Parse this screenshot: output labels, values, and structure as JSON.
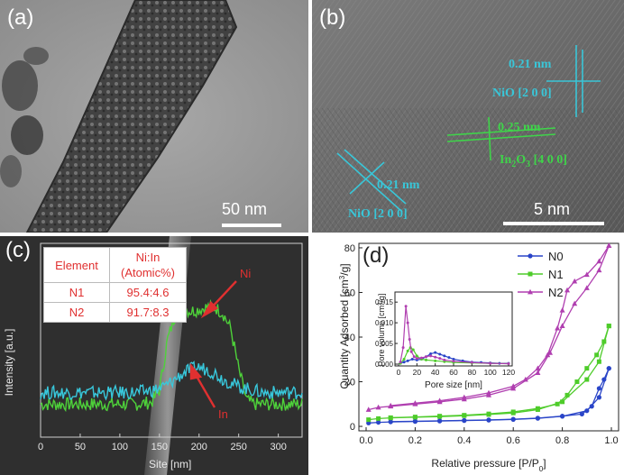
{
  "panel_a": {
    "label": "(a)",
    "scale_bar": "50 nm"
  },
  "panel_b": {
    "label": "(b)",
    "scale_bar": "5 nm",
    "annotations": [
      {
        "spacing": "0.21 nm",
        "plane": "NiO [2 0 0]",
        "color": "#39c6d8"
      },
      {
        "spacing": "0.25 nm",
        "plane_base": "In",
        "plane_sub": "2",
        "plane_mid": "O",
        "plane_sub2": "3",
        "plane_rest": " [4 0 0]",
        "color": "#3fd44a"
      },
      {
        "spacing": "0.21 nm",
        "plane": "NiO [2 0 0]",
        "color": "#39c6d8"
      }
    ]
  },
  "panel_c": {
    "label": "(c)",
    "table": {
      "headers": [
        "Element",
        "Ni:In (Atomic%)"
      ],
      "header_l1": "Ni:In",
      "header_l2": "(Atomic%)",
      "rows": [
        [
          "N1",
          "95.4:4.6"
        ],
        [
          "N2",
          "91.7:8.3"
        ]
      ]
    },
    "arrow_ni": "Ni",
    "arrow_in": "In",
    "chart_data": {
      "type": "line",
      "xlabel": "Site [nm]",
      "ylabel": "Intensity [a.u.]",
      "xlim": [
        0,
        330
      ],
      "xticks": [
        0,
        50,
        100,
        150,
        200,
        250,
        300
      ],
      "series": [
        {
          "name": "Ni",
          "color": "#4ed23a",
          "x": [
            0,
            20,
            40,
            60,
            80,
            100,
            120,
            140,
            150,
            160,
            170,
            180,
            190,
            200,
            210,
            220,
            230,
            240,
            250,
            260,
            270,
            280,
            300,
            330
          ],
          "y": [
            0.17,
            0.17,
            0.17,
            0.17,
            0.17,
            0.17,
            0.17,
            0.18,
            0.24,
            0.5,
            0.63,
            0.66,
            0.65,
            0.66,
            0.67,
            0.67,
            0.64,
            0.56,
            0.35,
            0.19,
            0.17,
            0.17,
            0.17,
            0.17
          ]
        },
        {
          "name": "In",
          "color": "#38c8dc",
          "x": [
            0,
            20,
            40,
            60,
            80,
            100,
            120,
            140,
            150,
            160,
            170,
            180,
            190,
            200,
            210,
            220,
            230,
            240,
            250,
            260,
            270,
            280,
            300,
            330
          ],
          "y": [
            0.23,
            0.23,
            0.23,
            0.23,
            0.23,
            0.23,
            0.23,
            0.24,
            0.25,
            0.27,
            0.3,
            0.33,
            0.35,
            0.36,
            0.35,
            0.33,
            0.3,
            0.28,
            0.26,
            0.25,
            0.24,
            0.23,
            0.23,
            0.23
          ]
        }
      ]
    }
  },
  "panel_d": {
    "label": "(d)",
    "chart_data": {
      "type": "line",
      "xlabel_main": "Relative pressure [P/P",
      "xlabel_sub": "0",
      "xlabel_end": "]",
      "ylabel_main": "Quantity Adsorbed [cm",
      "ylabel_sup": "3",
      "ylabel_end": "/g]",
      "xlim": [
        0,
        1.0
      ],
      "ylim": [
        -2,
        82
      ],
      "xticks": [
        0.0,
        0.2,
        0.4,
        0.6,
        0.8,
        1.0
      ],
      "xtick_labels": [
        "0.0",
        "0.2",
        "0.4",
        "0.6",
        "0.8",
        "1.0"
      ],
      "yticks": [
        0,
        20,
        40,
        60,
        80
      ],
      "legend_position": "top-right",
      "series": [
        {
          "name": "N0",
          "color": "#2a45c8",
          "marker": "circle",
          "adsorption": [
            [
              0.01,
              1.5
            ],
            [
              0.05,
              1.8
            ],
            [
              0.1,
              2.0
            ],
            [
              0.2,
              2.2
            ],
            [
              0.3,
              2.4
            ],
            [
              0.4,
              2.6
            ],
            [
              0.5,
              2.8
            ],
            [
              0.6,
              3.1
            ],
            [
              0.7,
              3.6
            ],
            [
              0.8,
              4.5
            ],
            [
              0.9,
              7.0
            ],
            [
              0.95,
              13.0
            ],
            [
              0.99,
              26.0
            ]
          ],
          "desorption": [
            [
              0.99,
              26.0
            ],
            [
              0.97,
              21.0
            ],
            [
              0.95,
              17.0
            ],
            [
              0.92,
              9.0
            ],
            [
              0.88,
              5.5
            ],
            [
              0.8,
              4.6
            ],
            [
              0.7,
              3.7
            ],
            [
              0.6,
              3.2
            ],
            [
              0.5,
              2.9
            ],
            [
              0.4,
              2.7
            ],
            [
              0.3,
              2.5
            ],
            [
              0.2,
              2.3
            ],
            [
              0.1,
              2.1
            ]
          ]
        },
        {
          "name": "N1",
          "color": "#4ecc2a",
          "marker": "square",
          "adsorption": [
            [
              0.01,
              3.0
            ],
            [
              0.05,
              3.5
            ],
            [
              0.1,
              3.8
            ],
            [
              0.2,
              4.1
            ],
            [
              0.3,
              4.4
            ],
            [
              0.4,
              4.8
            ],
            [
              0.5,
              5.3
            ],
            [
              0.6,
              6.0
            ],
            [
              0.7,
              7.5
            ],
            [
              0.8,
              11.0
            ],
            [
              0.9,
              21.0
            ],
            [
              0.95,
              29.0
            ],
            [
              0.99,
              45.0
            ]
          ],
          "desorption": [
            [
              0.99,
              45.0
            ],
            [
              0.97,
              38.0
            ],
            [
              0.94,
              32.0
            ],
            [
              0.9,
              26.0
            ],
            [
              0.86,
              20.0
            ],
            [
              0.82,
              14.0
            ],
            [
              0.78,
              10.0
            ],
            [
              0.7,
              8.0
            ],
            [
              0.6,
              6.5
            ],
            [
              0.5,
              5.6
            ],
            [
              0.4,
              5.0
            ],
            [
              0.3,
              4.6
            ],
            [
              0.2,
              4.2
            ],
            [
              0.1,
              3.9
            ]
          ]
        },
        {
          "name": "N2",
          "color": "#b03fb0",
          "marker": "triangle",
          "adsorption": [
            [
              0.01,
              7.5
            ],
            [
              0.05,
              8.5
            ],
            [
              0.1,
              9.0
            ],
            [
              0.2,
              10.0
            ],
            [
              0.3,
              11.0
            ],
            [
              0.4,
              12.2
            ],
            [
              0.5,
              14.0
            ],
            [
              0.6,
              17.0
            ],
            [
              0.7,
              24.0
            ],
            [
              0.75,
              33.0
            ],
            [
              0.8,
              45.0
            ],
            [
              0.85,
              55.0
            ],
            [
              0.9,
              62.0
            ],
            [
              0.95,
              70.0
            ],
            [
              0.99,
              81.0
            ]
          ],
          "desorption": [
            [
              0.99,
              81.0
            ],
            [
              0.95,
              74.0
            ],
            [
              0.9,
              68.0
            ],
            [
              0.85,
              65.0
            ],
            [
              0.82,
              61.0
            ],
            [
              0.8,
              52.0
            ],
            [
              0.78,
              44.0
            ],
            [
              0.74,
              32.0
            ],
            [
              0.7,
              26.0
            ],
            [
              0.65,
              21.0
            ],
            [
              0.6,
              18.0
            ],
            [
              0.5,
              15.0
            ],
            [
              0.4,
              13.0
            ],
            [
              0.3,
              11.5
            ],
            [
              0.2,
              10.4
            ],
            [
              0.1,
              9.3
            ]
          ]
        }
      ]
    },
    "inset_chart_data": {
      "type": "line",
      "xlabel": "Pore size [nm]",
      "ylabel_main": "Pore volume [cm",
      "ylabel_sup": "3",
      "ylabel_end": "/g]",
      "xlim": [
        0,
        120
      ],
      "ylim": [
        0,
        0.017
      ],
      "xticks": [
        0,
        20,
        40,
        60,
        80,
        100,
        120
      ],
      "yticks": [
        0.0,
        0.005,
        0.01,
        0.015
      ],
      "ytick_labels": [
        "0.000",
        "0.005",
        "0.010",
        "0.015"
      ],
      "series": [
        {
          "name": "N0",
          "color": "#2a45c8",
          "x": [
            2,
            6,
            10,
            15,
            20,
            25,
            30,
            35,
            40,
            45,
            50,
            55,
            60,
            70,
            80,
            90,
            100,
            110,
            120
          ],
          "y": [
            0.0002,
            0.0005,
            0.0008,
            0.0012,
            0.001,
            0.0012,
            0.0018,
            0.0025,
            0.0028,
            0.0024,
            0.002,
            0.0016,
            0.0012,
            0.0008,
            0.0005,
            0.0004,
            0.0003,
            0.0002,
            0.0002
          ]
        },
        {
          "name": "N1",
          "color": "#4ecc2a",
          "x": [
            2,
            6,
            10,
            13,
            16,
            20,
            25,
            30,
            40,
            50,
            60,
            80,
            100,
            120
          ],
          "y": [
            0.0002,
            0.0012,
            0.0032,
            0.004,
            0.0035,
            0.002,
            0.0012,
            0.001,
            0.0008,
            0.0006,
            0.0004,
            0.0003,
            0.0002,
            0.0001
          ]
        },
        {
          "name": "N2",
          "color": "#b03fb0",
          "x": [
            2,
            5,
            8,
            10,
            12,
            14,
            17,
            20,
            25,
            30,
            35,
            40,
            45,
            50,
            60,
            80,
            100,
            120
          ],
          "y": [
            0.0005,
            0.004,
            0.014,
            0.01,
            0.006,
            0.003,
            0.0018,
            0.0014,
            0.0015,
            0.0018,
            0.002,
            0.0017,
            0.0014,
            0.001,
            0.0007,
            0.0004,
            0.0002,
            0.0001
          ]
        }
      ]
    }
  },
  "colors": {
    "cyan": "#39c6d8",
    "green": "#3fd44a",
    "red": "#e03030"
  }
}
